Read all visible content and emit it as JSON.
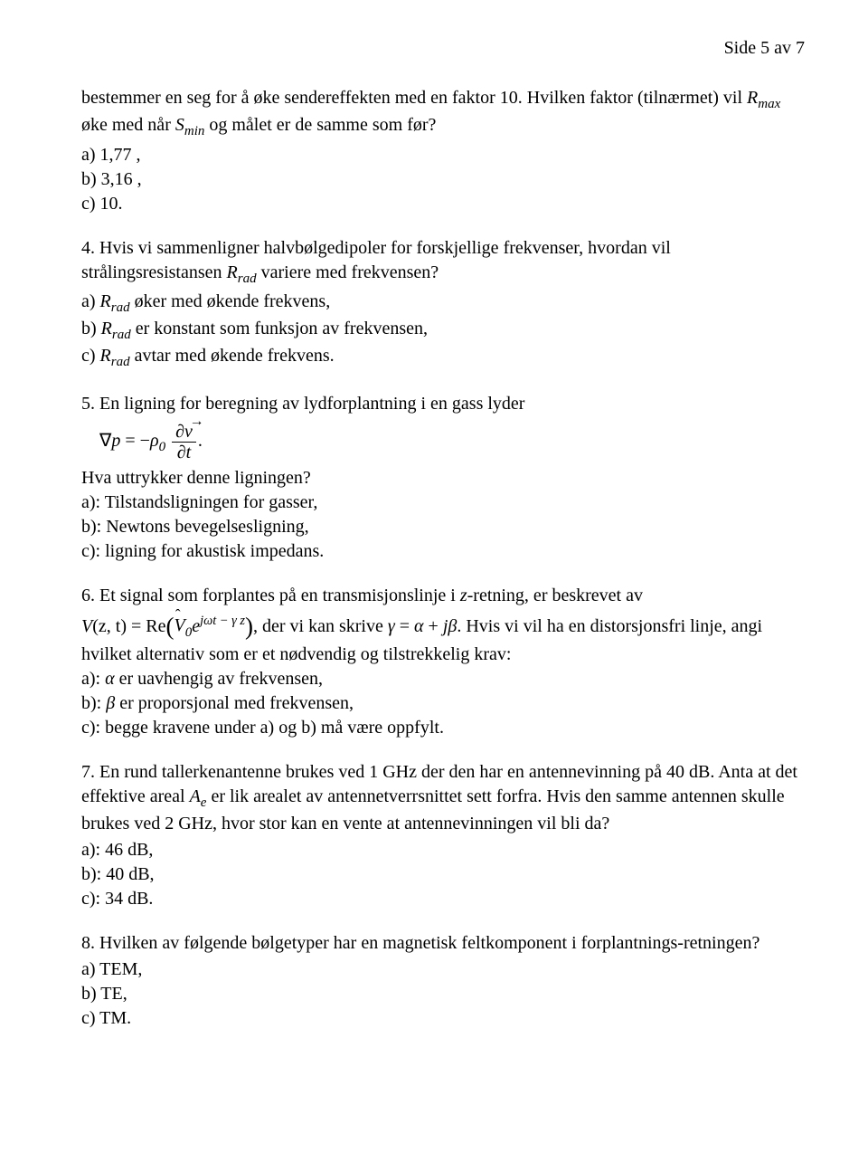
{
  "page": {
    "header": "Side 5 av 7"
  },
  "q3": {
    "intro_l1_a": "bestemmer en seg for å øke sendereffekten med en faktor 10. Hvilken faktor (tilnærmet) vil ",
    "intro_l1_b": " øke med når ",
    "intro_l1_c": " og målet er de samme som før?",
    "R": "R",
    "Rsub": "max",
    "S": "S",
    "Ssub": "min",
    "a": "a) 1,77 ,",
    "b": "b) 3,16 ,",
    "c": "c) 10."
  },
  "q4": {
    "num": "4.   ",
    "intro_a": "Hvis vi sammenligner halvbølgedipoler for forskjellige frekvenser, hvordan vil strålingsresistansen ",
    "intro_b": " variere med frekvensen?",
    "R": "R",
    "Rsub": "rad",
    "a_a": "a) ",
    "a_b": " øker med økende frekvens,",
    "b_a": "b) ",
    "b_b": " er konstant som funksjon av frekvensen,",
    "c_a": "c) ",
    "c_b": " avtar med økende frekvens."
  },
  "q5": {
    "num": "5.   ",
    "intro": "En ligning for beregning av lydforplantning i en gass lyder",
    "eq_lhs_nabla": "∇",
    "eq_lhs_p": "p",
    "eq_eq": " = −",
    "rho": "ρ",
    "rho_sub": "0",
    "num_top_d": "∂",
    "num_top_v": "v",
    "den_d": "∂",
    "den_t": "t",
    "period": ".",
    "q": "Hva uttrykker denne ligningen?",
    "a": "a): Tilstandsligningen for gasser,",
    "b": "b): Newtons bevegelsesligning,",
    "c": "c): ligning for akustisk impedans."
  },
  "q6": {
    "num": "6.   ",
    "intro_a": "Et signal som forplantes på en transmisjonslinje i ",
    "z": "z",
    "intro_b": "-retning, er beskrevet av",
    "eq_V": "V",
    "eq_args": "(z, t) = Re",
    "eq_Vhat": "V",
    "eq_Vhat_sub": "0",
    "eq_e": "e",
    "eq_exp": "jωt − γ z",
    "after_eq_a": ", der vi kan skrive ",
    "gamma": "γ",
    "eqsym": " = ",
    "alpha": "α",
    "plus": " + ",
    "j": "j",
    "beta": "β",
    "after_eq_b": ". Hvis vi vil ha en distorsjonsfri linje, angi hvilket alternativ som er et nødvendig og tilstrekkelig krav:",
    "a_a": "a): ",
    "a_b": " er uavhengig av frekvensen,",
    "b_a": "b): ",
    "b_b": " er proporsjonal med frekvensen,",
    "c": "c): begge kravene under a) og b) må være oppfylt."
  },
  "q7": {
    "num": "7.   ",
    "line1_a": "En rund tallerkenantenne brukes ved 1 GHz der den har en antennevinning på 40 dB. Anta at det effektive areal ",
    "Ae_A": "A",
    "Ae_sub": "e",
    "line1_b": " er lik arealet av antennetverrsnittet sett forfra. Hvis den samme antennen skulle brukes ved 2 GHz, hvor stor kan en vente at antennevinningen vil bli da?",
    "a": "a): 46 dB,",
    "b": "b): 40 dB,",
    "c": "c): 34 dB."
  },
  "q8": {
    "num": "8.   ",
    "intro": "Hvilken av følgende bølgetyper har en magnetisk feltkomponent i forplantnings-retningen?",
    "a": "a) TEM,",
    "b": "b) TE,",
    "c": "c) TM."
  }
}
